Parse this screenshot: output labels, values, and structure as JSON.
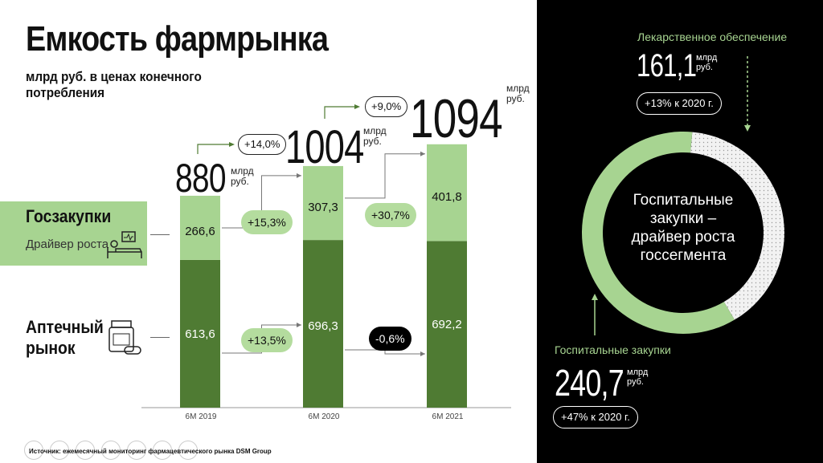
{
  "title": "Емкость фармрынка",
  "subtitle": "млрд руб. в ценах конечного потребления",
  "segments": {
    "hospital": {
      "name": "Госзакупки",
      "sub": "Драйвер роста"
    },
    "retail": {
      "name_line1": "Аптечный",
      "name_line2": "рынок"
    }
  },
  "unit_top": "млрд",
  "unit_bottom": "руб.",
  "growth_total": [
    "+14,0%",
    "+9,0%"
  ],
  "growth_hospital": [
    "+15,3%",
    "+30,7%"
  ],
  "growth_retail": [
    "+13,5%",
    "-0,6%"
  ],
  "chart_data": {
    "type": "bar",
    "stacked": true,
    "categories": [
      "6M 2019",
      "6M 2020",
      "6M 2021"
    ],
    "totals": [
      "880",
      "1004",
      "1094"
    ],
    "total_values": [
      880,
      1004,
      1094
    ],
    "series": [
      {
        "name": "Аптечный рынок",
        "values": [
          613.6,
          696.3,
          692.2
        ],
        "labels": [
          "613,6",
          "696,3",
          "692,2"
        ],
        "color": "#4f7b33"
      },
      {
        "name": "Госзакупки",
        "values": [
          266.6,
          307.3,
          401.8
        ],
        "labels": [
          "266,6",
          "307,3",
          "401,8"
        ],
        "color": "#a7d491"
      }
    ],
    "ylim": [
      0,
      1100
    ]
  },
  "donut": {
    "center_text": [
      "Госпитальные",
      "закупки –",
      "драйвер роста",
      "госсегмента"
    ],
    "drug_supply": {
      "label": "Лекарственное обеспечение",
      "value": "161,1",
      "growth": "+13% к 2020 г.",
      "amount": 161.1
    },
    "hospital": {
      "label": "Госпитальные закупки",
      "value": "240,7",
      "growth": "+47% к 2020 г.",
      "amount": 240.7
    }
  },
  "colors": {
    "dark_green": "#4f7b33",
    "light_green": "#a7d491",
    "pill_green": "#b4dc9e"
  },
  "source": "Источник: ежемесячный мониторинг фармацевтического рынка DSM Group"
}
